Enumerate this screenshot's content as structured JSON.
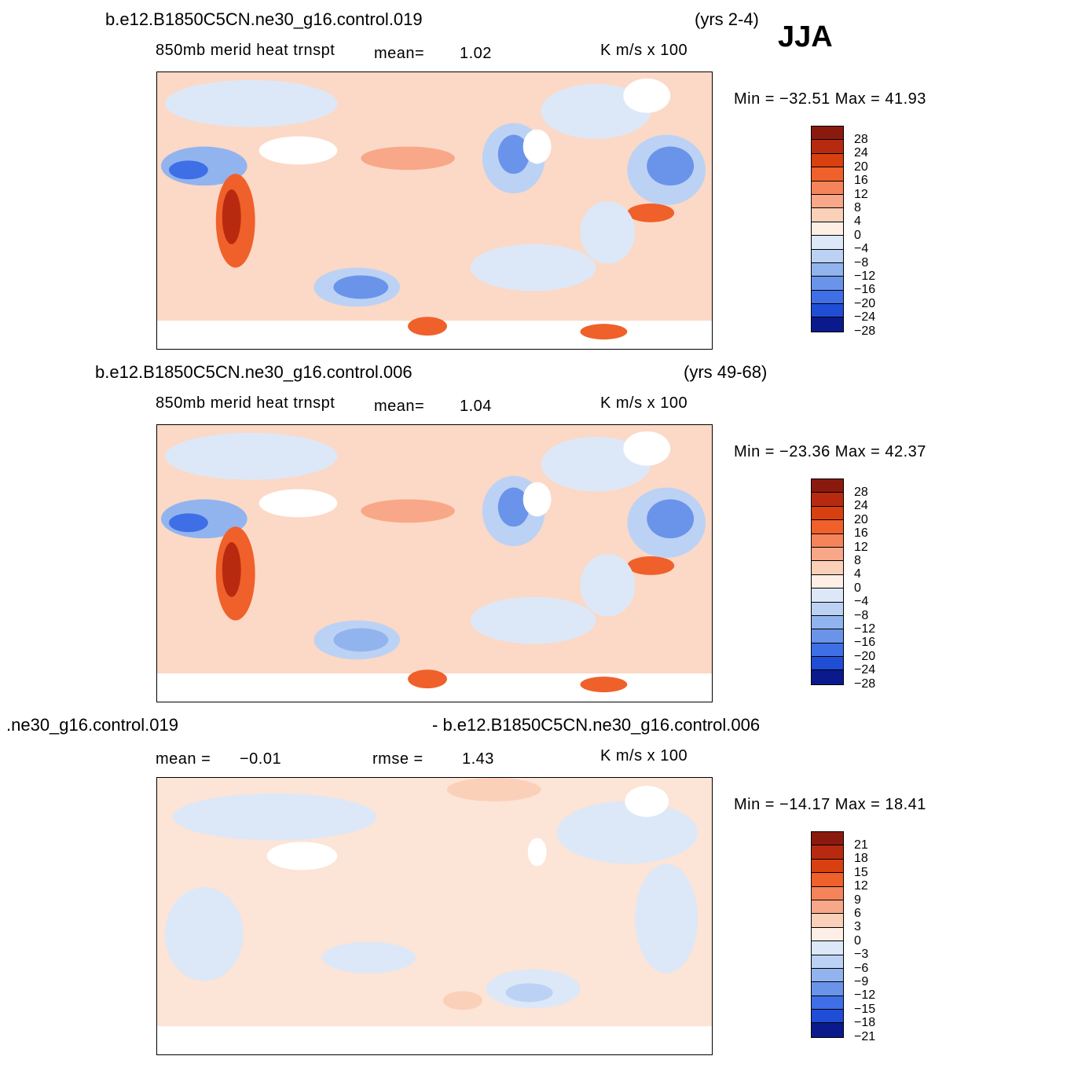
{
  "season": "JJA",
  "units": "K  m/s  x  100",
  "panels": [
    {
      "case": "b.e12.B1850C5CN.ne30_g16.control.019",
      "years": "(yrs 2-4)",
      "variable": "850mb  merid  heat  trnspt",
      "mean_label": "mean=",
      "mean_value": "1.02",
      "stats": "Min  =  −32.51  Max  =    41.93",
      "colorbar": [
        "28",
        "24",
        "20",
        "16",
        "12",
        "8",
        "4",
        "0",
        "−4",
        "−8",
        "−12",
        "−16",
        "−20",
        "−24",
        "−28"
      ]
    },
    {
      "case": "b.e12.B1850C5CN.ne30_g16.control.006",
      "years": "(yrs 49-68)",
      "variable": "850mb  merid  heat  trnspt",
      "mean_label": "mean=",
      "mean_value": "1.04",
      "stats": "Min  =  −23.36  Max  =    42.37",
      "colorbar": [
        "28",
        "24",
        "20",
        "16",
        "12",
        "8",
        "4",
        "0",
        "−4",
        "−8",
        "−12",
        "−16",
        "−20",
        "−24",
        "−28"
      ]
    },
    {
      "case_left": ".ne30_g16.control.019",
      "case_right": "- b.e12.B1850C5CN.ne30_g16.control.006",
      "mean_label": "mean  =",
      "mean_value": "−0.01",
      "rmse_label": "rmse  =",
      "rmse_value": "1.43",
      "stats": "Min  =  −14.17  Max  =    18.41",
      "colorbar": [
        "21",
        "18",
        "15",
        "12",
        "9",
        "6",
        "3",
        "0",
        "−3",
        "−6",
        "−9",
        "−12",
        "−15",
        "−18",
        "−21"
      ]
    }
  ],
  "colorbar_colors": [
    "#8b1a0e",
    "#b82a10",
    "#d9400f",
    "#f0602a",
    "#f5845a",
    "#f8a888",
    "#fbd0b8",
    "#fdefe6",
    "#dce8f8",
    "#bcd2f4",
    "#92b4ee",
    "#6a94ea",
    "#3f6fe6",
    "#1f4dd6",
    "#0a1a8c"
  ]
}
